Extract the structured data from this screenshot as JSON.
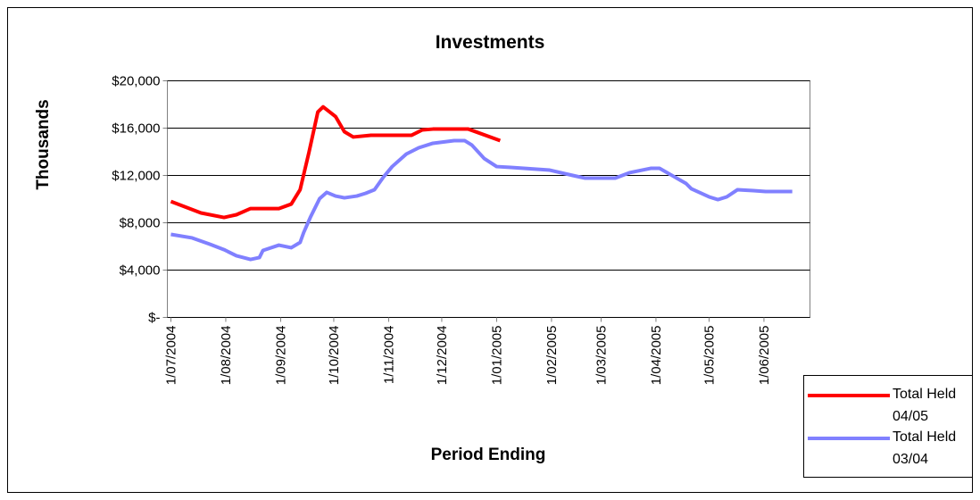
{
  "chart_data": {
    "type": "line",
    "title": "Investments",
    "x_label": "Period Ending",
    "y_label": "Thousands",
    "xlim": [
      "29/06/2004",
      "27/06/2005"
    ],
    "xticks": [
      "1/07/2004",
      "1/08/2004",
      "1/09/2004",
      "1/10/2004",
      "1/11/2004",
      "1/12/2004",
      "1/01/2005",
      "1/02/2005",
      "1/03/2005",
      "1/04/2005",
      "1/05/2005",
      "1/06/2005"
    ],
    "ylim": [
      0,
      20000
    ],
    "yticks": [
      {
        "value": 0,
        "label": "$-"
      },
      {
        "value": 4000,
        "label": "$4,000"
      },
      {
        "value": 8000,
        "label": "$8,000"
      },
      {
        "value": 12000,
        "label": "$12,000"
      },
      {
        "value": 16000,
        "label": "$16,000"
      },
      {
        "value": 20000,
        "label": "$20,000"
      }
    ],
    "grid": true,
    "legend": "bottom-right",
    "series": [
      {
        "name": "Total Held 04/05",
        "color": "#ff0000",
        "x": [
          "1/07/2004",
          "18/07/2004",
          "31/07/2004",
          "7/08/2004",
          "15/08/2004",
          "31/08/2004",
          "7/09/2004",
          "12/09/2004",
          "17/09/2004",
          "22/09/2004",
          "25/09/2004",
          "2/10/2004",
          "7/10/2004",
          "12/10/2004",
          "22/10/2004",
          "14/11/2004",
          "20/11/2004",
          "26/11/2004",
          "16/12/2004",
          "3/01/2005"
        ],
        "values": [
          9800,
          8830,
          8450,
          8680,
          9200,
          9200,
          9580,
          10800,
          13960,
          17360,
          17800,
          16980,
          15700,
          15250,
          15400,
          15400,
          15850,
          15920,
          15920,
          14940
        ]
      },
      {
        "name": "Total Held 03/04",
        "color": "#8080ff",
        "x": [
          "1/07/2004",
          "13/07/2004",
          "23/07/2004",
          "31/07/2004",
          "7/08/2004",
          "15/08/2004",
          "20/08/2004",
          "22/08/2004",
          "31/08/2004",
          "7/09/2004",
          "12/09/2004",
          "14/09/2004",
          "18/09/2004",
          "23/09/2004",
          "27/09/2004",
          "2/10/2004",
          "7/10/2004",
          "14/10/2004",
          "19/10/2004",
          "24/10/2004",
          "29/10/2004",
          "3/11/2004",
          "11/11/2004",
          "18/11/2004",
          "26/11/2004",
          "8/12/2004",
          "14/12/2004",
          "18/12/2004",
          "25/12/2004",
          "1/01/2005",
          "9/01/2005",
          "31/01/2005",
          "13/02/2005",
          "20/02/2005",
          "9/03/2005",
          "17/03/2005",
          "29/03/2005",
          "3/04/2005",
          "11/04/2005",
          "18/04/2005",
          "21/04/2005",
          "1/05/2005",
          "6/05/2005",
          "11/05/2005",
          "17/05/2005",
          "26/05/2005",
          "2/06/2005",
          "17/06/2005"
        ],
        "values": [
          7020,
          6720,
          6190,
          5730,
          5210,
          4900,
          5060,
          5660,
          6110,
          5890,
          6340,
          7170,
          8530,
          10040,
          10570,
          10260,
          10110,
          10260,
          10490,
          10790,
          11850,
          12750,
          13810,
          14340,
          14720,
          14940,
          14940,
          14570,
          13430,
          12750,
          12680,
          12450,
          12000,
          11770,
          11770,
          12230,
          12600,
          12600,
          11920,
          11320,
          10870,
          10190,
          9960,
          10190,
          10790,
          10720,
          10640,
          10640
        ]
      }
    ]
  }
}
